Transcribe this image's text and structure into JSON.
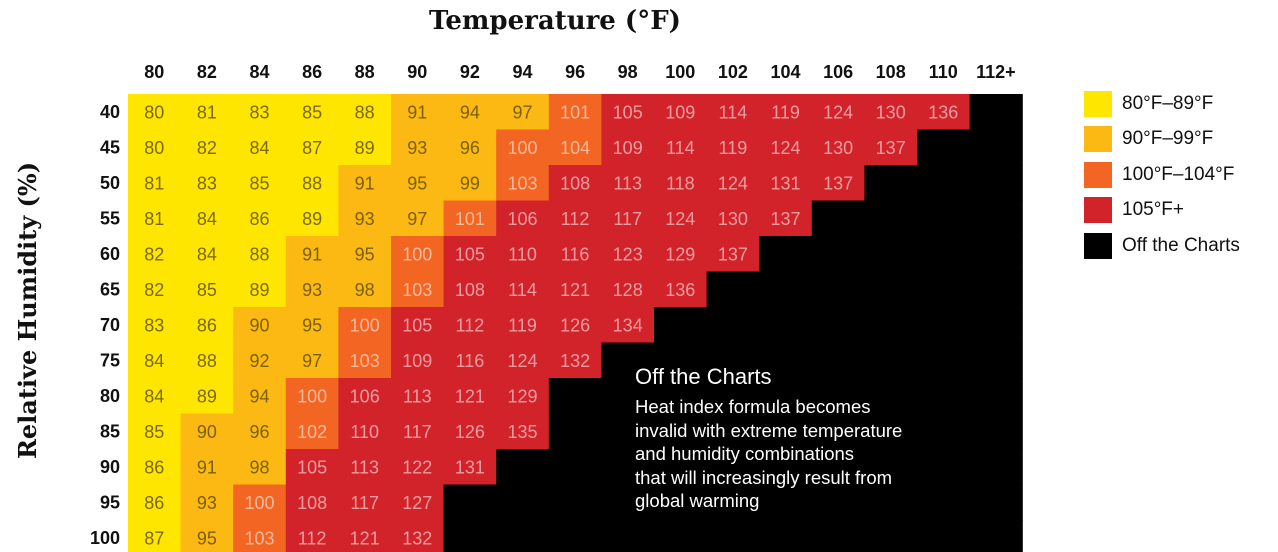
{
  "chart_data": {
    "type": "heatmap",
    "title": "Temperature (°F)",
    "xlabel": "Temperature (°F)",
    "ylabel": "Relative Humidity (%)",
    "x": [
      "80",
      "82",
      "84",
      "86",
      "88",
      "90",
      "92",
      "94",
      "96",
      "98",
      "100",
      "102",
      "104",
      "106",
      "108",
      "110",
      "112+"
    ],
    "y": [
      "40",
      "45",
      "50",
      "55",
      "60",
      "65",
      "70",
      "75",
      "80",
      "85",
      "90",
      "95",
      "100"
    ],
    "values": [
      [
        80,
        81,
        83,
        85,
        88,
        91,
        94,
        97,
        101,
        105,
        109,
        114,
        119,
        124,
        130,
        136,
        null
      ],
      [
        80,
        82,
        84,
        87,
        89,
        93,
        96,
        100,
        104,
        109,
        114,
        119,
        124,
        130,
        137,
        null,
        null
      ],
      [
        81,
        83,
        85,
        88,
        91,
        95,
        99,
        103,
        108,
        113,
        118,
        124,
        131,
        137,
        null,
        null,
        null
      ],
      [
        81,
        84,
        86,
        89,
        93,
        97,
        101,
        106,
        112,
        117,
        124,
        130,
        137,
        null,
        null,
        null,
        null
      ],
      [
        82,
        84,
        88,
        91,
        95,
        100,
        105,
        110,
        116,
        123,
        129,
        137,
        null,
        null,
        null,
        null,
        null
      ],
      [
        82,
        85,
        89,
        93,
        98,
        103,
        108,
        114,
        121,
        128,
        136,
        null,
        null,
        null,
        null,
        null,
        null
      ],
      [
        83,
        86,
        90,
        95,
        100,
        105,
        112,
        119,
        126,
        134,
        null,
        null,
        null,
        null,
        null,
        null,
        null
      ],
      [
        84,
        88,
        92,
        97,
        103,
        109,
        116,
        124,
        132,
        null,
        null,
        null,
        null,
        null,
        null,
        null,
        null
      ],
      [
        84,
        89,
        94,
        100,
        106,
        113,
        121,
        129,
        null,
        null,
        null,
        null,
        null,
        null,
        null,
        null,
        null
      ],
      [
        85,
        90,
        96,
        102,
        110,
        117,
        126,
        135,
        null,
        null,
        null,
        null,
        null,
        null,
        null,
        null,
        null
      ],
      [
        86,
        91,
        98,
        105,
        113,
        122,
        131,
        null,
        null,
        null,
        null,
        null,
        null,
        null,
        null,
        null,
        null
      ],
      [
        86,
        93,
        100,
        108,
        117,
        127,
        null,
        null,
        null,
        null,
        null,
        null,
        null,
        null,
        null,
        null,
        null
      ],
      [
        87,
        95,
        103,
        112,
        121,
        132,
        null,
        null,
        null,
        null,
        null,
        null,
        null,
        null,
        null,
        null,
        null
      ]
    ],
    "legend": [
      {
        "label": "80°F–89°F",
        "color": "#ffe600",
        "min": 80,
        "max": 89
      },
      {
        "label": "90°F–99°F",
        "color": "#fdb913",
        "min": 90,
        "max": 99
      },
      {
        "label": "100°F–104°F",
        "color": "#f26522",
        "min": 100,
        "max": 104
      },
      {
        "label": "105°F+",
        "color": "#d2232a",
        "min": 105,
        "max": 999
      },
      {
        "label": "Off the Charts",
        "color": "#000000",
        "min": null,
        "max": null
      }
    ],
    "legend_position": "right",
    "annotation": {
      "title": "Off the Charts",
      "text": "Heat index formula becomes\ninvalid with extreme temperature\nand humidity combinations\nthat will increasingly result from\nglobal warming"
    }
  }
}
